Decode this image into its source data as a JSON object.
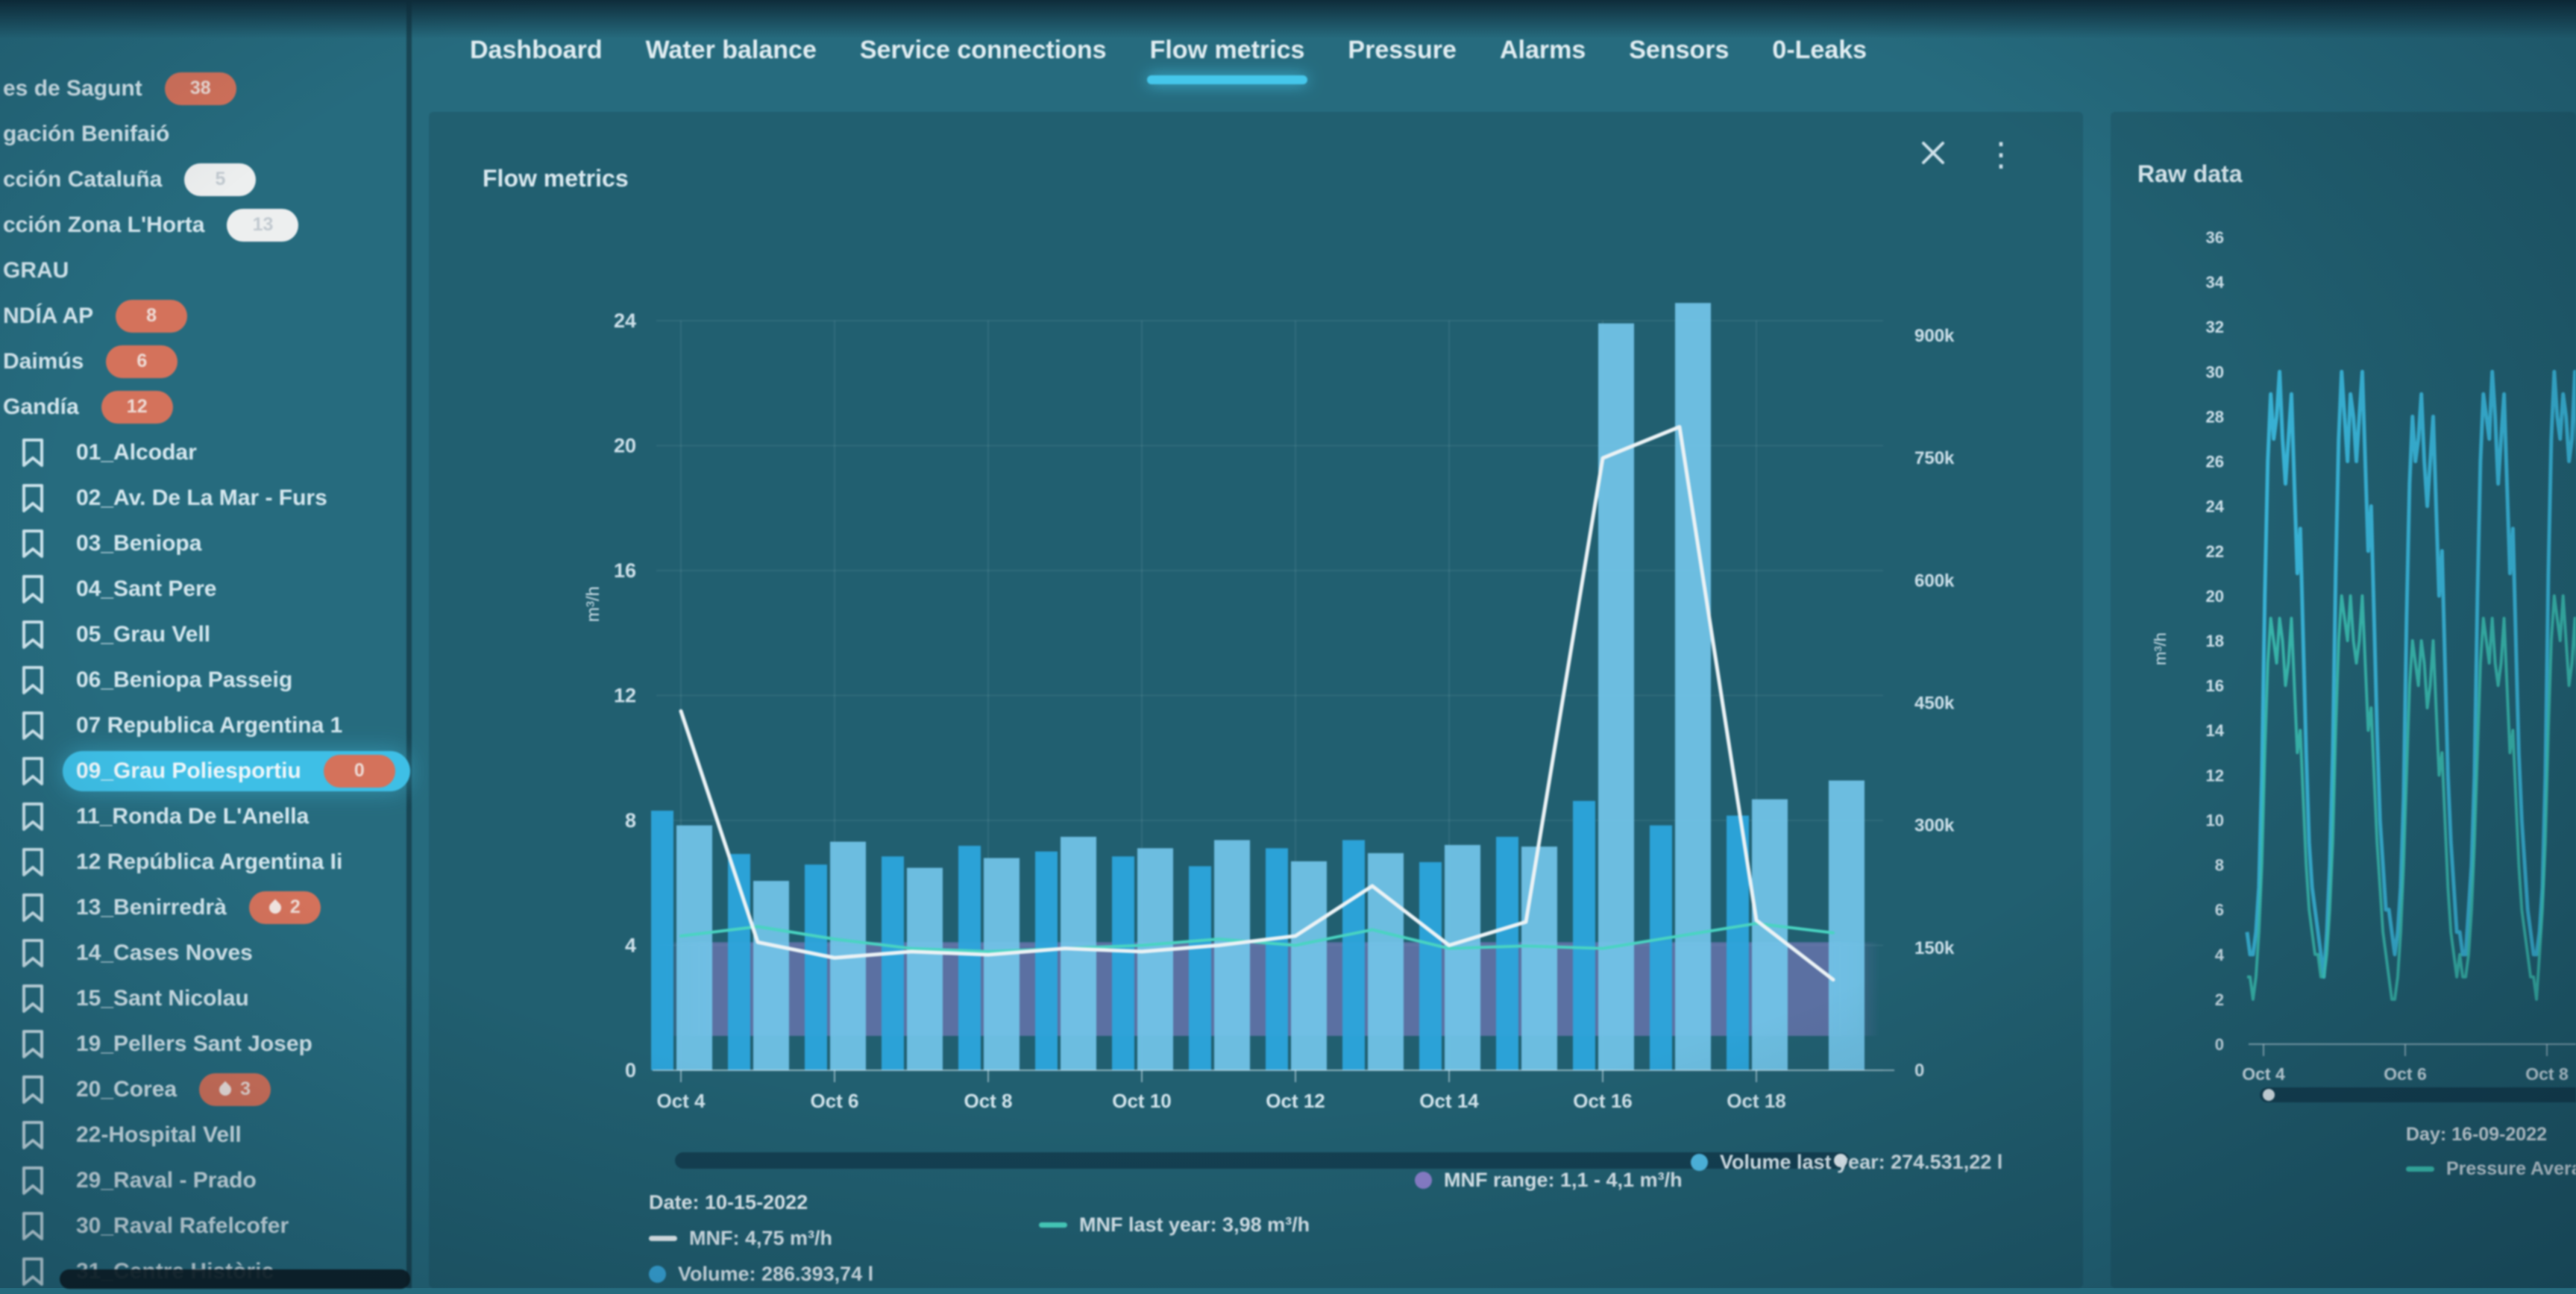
{
  "colors": {
    "accent": "#3bcbf3",
    "selected": "#34c3ee",
    "bar_volume": "#22a9e6",
    "bar_volume_last": "#6cc9f1",
    "line_mnf": "#eef6f9",
    "line_mnf_last": "#3fd9c4",
    "band_mnf_range": "#8b7ed2",
    "badge_red": "#dd7057",
    "raw_cyan": "#33c6ef",
    "raw_teal": "#36d8c2"
  },
  "tabs": {
    "items": [
      {
        "label": "Dashboard",
        "active": false
      },
      {
        "label": "Water balance",
        "active": false
      },
      {
        "label": "Service connections",
        "active": false
      },
      {
        "label": "Flow metrics",
        "active": true
      },
      {
        "label": "Pressure",
        "active": false
      },
      {
        "label": "Alarms",
        "active": false
      },
      {
        "label": "Sensors",
        "active": false
      },
      {
        "label": "0-Leaks",
        "active": false
      }
    ]
  },
  "sidebar": {
    "items": [
      {
        "label": "es de Sagunt",
        "badge": "38",
        "badge_style": "red",
        "bookmark": false
      },
      {
        "label": "gación Benifaió",
        "bookmark": false
      },
      {
        "label": "cción Cataluña",
        "badge": "5",
        "badge_style": "white",
        "bookmark": false
      },
      {
        "label": "cción Zona L'Horta",
        "badge": "13",
        "badge_style": "white",
        "bookmark": false
      },
      {
        "label": "GRAU",
        "bookmark": false
      },
      {
        "label": "NDÍA AP",
        "badge": "8",
        "badge_style": "red",
        "bookmark": false
      },
      {
        "label": "Daimús",
        "badge": "6",
        "badge_style": "red",
        "bookmark": false
      },
      {
        "label": "Gandía",
        "badge": "12",
        "badge_style": "red",
        "bookmark": false
      },
      {
        "label": "01_Alcodar",
        "bookmark": true
      },
      {
        "label": "02_Av. De La Mar - Furs",
        "bookmark": true
      },
      {
        "label": "03_Beniopa",
        "bookmark": true
      },
      {
        "label": "04_Sant Pere",
        "bookmark": true
      },
      {
        "label": "05_Grau Vell",
        "bookmark": true
      },
      {
        "label": "06_Beniopa Passeig",
        "bookmark": true
      },
      {
        "label": "07 Republica Argentina 1",
        "bookmark": true
      },
      {
        "label": "09_Grau Poliesportiu",
        "badge": "0",
        "badge_style": "red",
        "selected": true,
        "bookmark": true
      },
      {
        "label": "11_Ronda De L'Anella",
        "bookmark": true
      },
      {
        "label": "12 República Argentina Ii",
        "bookmark": true
      },
      {
        "label": "13_Benirredrà",
        "badge": "2",
        "badge_style": "red",
        "droplet": true,
        "bookmark": true
      },
      {
        "label": "14_Cases Noves",
        "bookmark": true
      },
      {
        "label": "15_Sant Nicolau",
        "bookmark": true
      },
      {
        "label": "19_Pellers Sant Josep",
        "bookmark": true
      },
      {
        "label": "20_Corea",
        "badge": "3",
        "badge_style": "red",
        "droplet": true,
        "bookmark": true
      },
      {
        "label": "22-Hospital Vell",
        "bookmark": true
      },
      {
        "label": "29_Raval - Prado",
        "bookmark": true
      },
      {
        "label": "30_Raval Rafelcofer",
        "bookmark": true
      },
      {
        "label": "31_Centre Històric",
        "bookmark": true
      }
    ]
  },
  "flow_panel": {
    "title": "Flow metrics"
  },
  "raw_panel": {
    "title": "Raw data",
    "footer_day": "Day: 16-09-2022",
    "footer_series": "Pressure Avera"
  },
  "legend": {
    "date_label": "Date: 10-15-2022",
    "mnf": "MNF: 4,75 m³/h",
    "volume": "Volume: 286.393,74 l",
    "mnf_last_year": "MNF last year: 3,98 m³/h",
    "mnf_range": "MNF range: 1,1 - 4,1 m³/h",
    "volume_last_year": "Volume last year: 274.531,22 l"
  },
  "chart_data": [
    {
      "type": "bar",
      "title": "Flow metrics",
      "categories": [
        "Oct 4",
        "Oct 5",
        "Oct 6",
        "Oct 7",
        "Oct 8",
        "Oct 9",
        "Oct 10",
        "Oct 11",
        "Oct 12",
        "Oct 13",
        "Oct 14",
        "Oct 15",
        "Oct 16",
        "Oct 17",
        "Oct 18",
        "Oct 19"
      ],
      "x_tick_labels": [
        "Oct 4",
        "Oct 6",
        "Oct 8",
        "Oct 10",
        "Oct 12",
        "Oct 14",
        "Oct 16",
        "Oct 18"
      ],
      "y_left": {
        "label": "m³/h",
        "ticks": [
          0,
          4,
          8,
          12,
          16,
          20,
          24
        ],
        "max": 24
      },
      "y_right": {
        "tick_labels": [
          "0",
          "150k",
          "300k",
          "450k",
          "600k",
          "750k",
          "900k"
        ],
        "tick_values_k": [
          0,
          150,
          300,
          450,
          600,
          750,
          900
        ],
        "max_k": 900
      },
      "grid": true,
      "legend_position": "bottom",
      "series": [
        {
          "name": "Volume",
          "type": "bar",
          "axis": "right",
          "unit": "l",
          "values_k": [
            318,
            265,
            252,
            262,
            275,
            268,
            262,
            250,
            272,
            282,
            255,
            286,
            330,
            300,
            312,
            null
          ]
        },
        {
          "name": "Volume last year",
          "type": "bar",
          "axis": "right",
          "unit": "l",
          "values_k": [
            300,
            232,
            280,
            248,
            260,
            286,
            272,
            282,
            256,
            266,
            276,
            274,
            915,
            940,
            332,
            355
          ]
        },
        {
          "name": "MNF",
          "type": "line",
          "axis": "left",
          "unit": "m³/h",
          "values": [
            11.5,
            4.1,
            3.6,
            3.8,
            3.7,
            3.9,
            3.8,
            4.0,
            4.3,
            5.9,
            4.0,
            4.75,
            19.6,
            20.6,
            4.8,
            2.9
          ]
        },
        {
          "name": "MNF last year",
          "type": "line",
          "axis": "left",
          "unit": "m³/h",
          "values": [
            4.3,
            4.6,
            4.2,
            3.9,
            3.8,
            3.9,
            4.0,
            4.2,
            4.0,
            4.5,
            3.9,
            3.98,
            3.9,
            4.3,
            4.7,
            4.4
          ]
        },
        {
          "name": "MNF range",
          "type": "band",
          "axis": "left",
          "low": 1.1,
          "high": 4.1
        }
      ]
    },
    {
      "type": "line",
      "title": "Raw data",
      "ylabel": "m³/h",
      "y_ticks": [
        0,
        2,
        4,
        6,
        8,
        10,
        12,
        14,
        16,
        18,
        20,
        22,
        24,
        26,
        28,
        30,
        32,
        34,
        36
      ],
      "x_tick_labels": [
        "Oct 4",
        "Oct 6",
        "Oct 8"
      ],
      "series": [
        {
          "name": "flow-raw",
          "values": [
            5,
            4,
            4,
            5,
            7,
            12,
            20,
            26,
            29,
            27,
            28,
            30,
            27,
            25,
            27,
            29,
            25,
            21,
            23,
            18,
            13,
            9,
            7,
            6,
            5,
            4,
            3,
            5,
            8,
            13,
            21,
            27,
            30,
            28,
            26,
            29,
            28,
            26,
            28,
            30,
            26,
            22,
            24,
            19,
            14,
            10,
            8,
            6,
            6,
            5,
            4,
            5,
            7,
            11,
            19,
            25,
            28,
            26,
            27,
            29,
            26,
            24,
            26,
            28,
            24,
            20,
            22,
            17,
            12,
            9,
            7,
            5,
            5,
            4,
            4,
            6,
            8,
            12,
            20,
            26,
            29,
            28,
            27,
            30,
            28,
            25,
            27,
            29,
            25,
            21,
            23,
            18,
            13,
            10,
            8,
            6,
            5,
            4,
            4,
            5,
            7,
            12,
            21,
            27,
            30,
            28,
            27,
            29,
            28,
            26,
            27,
            30,
            26,
            22,
            23,
            19,
            14,
            10,
            8,
            6
          ]
        },
        {
          "name": "flow-raw-secondary",
          "values": [
            3,
            3,
            2,
            3,
            5,
            8,
            13,
            17,
            19,
            18,
            17,
            19,
            18,
            16,
            17,
            19,
            16,
            13,
            14,
            11,
            8,
            6,
            5,
            4,
            4,
            3,
            3,
            4,
            6,
            9,
            14,
            18,
            20,
            19,
            18,
            20,
            18,
            17,
            18,
            20,
            17,
            14,
            15,
            12,
            9,
            7,
            5,
            4,
            3,
            2,
            2,
            3,
            5,
            8,
            12,
            16,
            18,
            17,
            16,
            18,
            17,
            15,
            16,
            18,
            15,
            12,
            13,
            10,
            7,
            5,
            4,
            3,
            4,
            3,
            3,
            4,
            6,
            9,
            13,
            17,
            19,
            18,
            17,
            19,
            17,
            16,
            17,
            19,
            16,
            13,
            14,
            11,
            8,
            6,
            5,
            4,
            3,
            3,
            2,
            4,
            6,
            9,
            14,
            18,
            20,
            19,
            18,
            20,
            18,
            16,
            17,
            19,
            16,
            13,
            14,
            11,
            8,
            6,
            5,
            4
          ]
        }
      ]
    }
  ]
}
